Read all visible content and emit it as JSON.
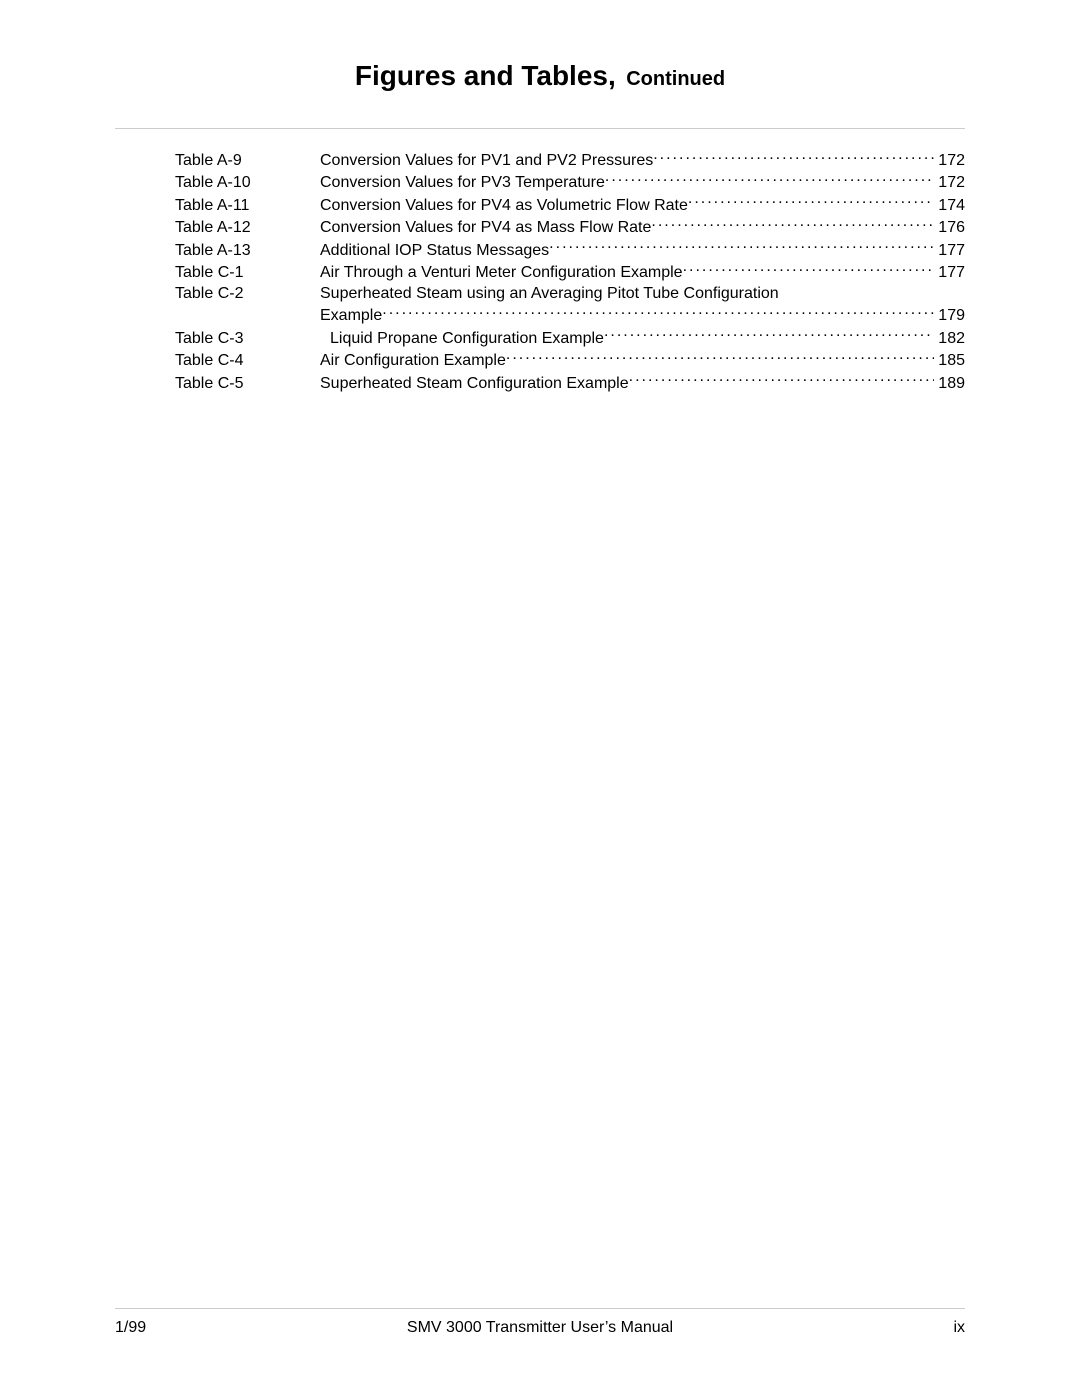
{
  "title": {
    "main": "Figures and Tables,",
    "continued": "Continued"
  },
  "toc": [
    {
      "label": "Table A-9",
      "desc": "Conversion Values for PV1 and PV2 Pressures",
      "page": "172",
      "indent": false
    },
    {
      "label": "Table A-10",
      "desc": "Conversion Values for PV3 Temperature",
      "page": "172",
      "indent": false
    },
    {
      "label": "Table A-11",
      "desc": "Conversion Values for PV4 as Volumetric Flow Rate",
      "page": "174",
      "indent": false
    },
    {
      "label": "Table A-12",
      "desc": "Conversion Values for PV4 as Mass Flow Rate",
      "page": "176",
      "indent": false
    },
    {
      "label": "Table A-13",
      "desc": "Additional IOP Status Messages",
      "page": "177",
      "indent": false
    },
    {
      "label": "Table C-1",
      "desc": "Air Through a Venturi Meter Configuration Example",
      "page": "177",
      "indent": false
    },
    {
      "label": "Table C-2",
      "desc": "Superheated Steam using an Averaging Pitot Tube Configuration",
      "page": "",
      "indent": false,
      "nodots": true
    },
    {
      "label": "",
      "desc": "Example",
      "page": "179",
      "indent": false
    },
    {
      "label": "Table C-3",
      "desc": "Liquid Propane Configuration Example",
      "page": "182",
      "indent": true
    },
    {
      "label": "Table C-4",
      "desc": "Air Configuration Example",
      "page": "185",
      "indent": false
    },
    {
      "label": "Table C-5",
      "desc": "Superheated Steam Configuration Example",
      "page": "189",
      "indent": false
    }
  ],
  "footer": {
    "left": "1/99",
    "center": "SMV 3000 Transmitter User’s Manual",
    "right": "ix"
  },
  "colors": {
    "text": "#000000",
    "background": "#ffffff",
    "rule": "#cccccc"
  },
  "fonts": {
    "body_size_pt": 12,
    "title_main_pt": 21,
    "title_cont_pt": 15
  }
}
